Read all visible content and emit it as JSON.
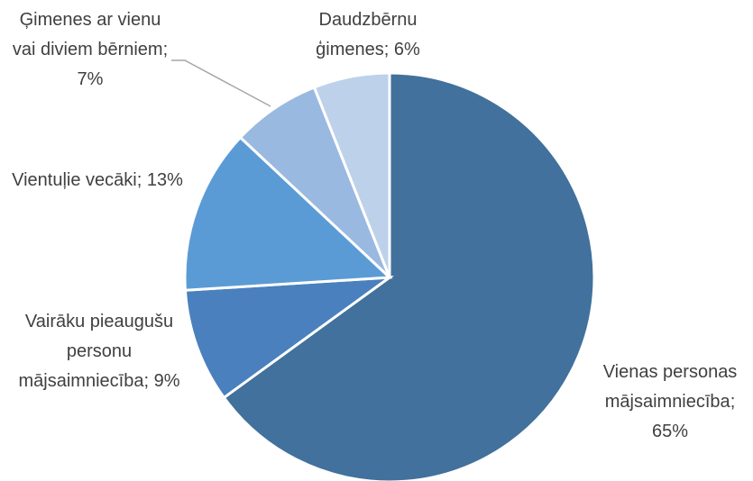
{
  "chart_data": {
    "type": "pie",
    "categories": [
      "Vienas personas mājsaimniecība",
      "Vairāku pieaugušu personu mājsaimniecība",
      "Vientuļie vecāki",
      "Ģimenes ar vienu vai diviem bērniem",
      "Daudzbērnu ģimenes"
    ],
    "values": [
      65,
      9,
      13,
      7,
      6
    ],
    "value_labels": [
      "65%",
      "9%",
      "13%",
      "7%",
      "6%"
    ],
    "label_separator": ";",
    "colors": [
      "#41719c",
      "#4a80bd",
      "#5b9bd5",
      "#9ab9e0",
      "#bdd1ea"
    ]
  }
}
